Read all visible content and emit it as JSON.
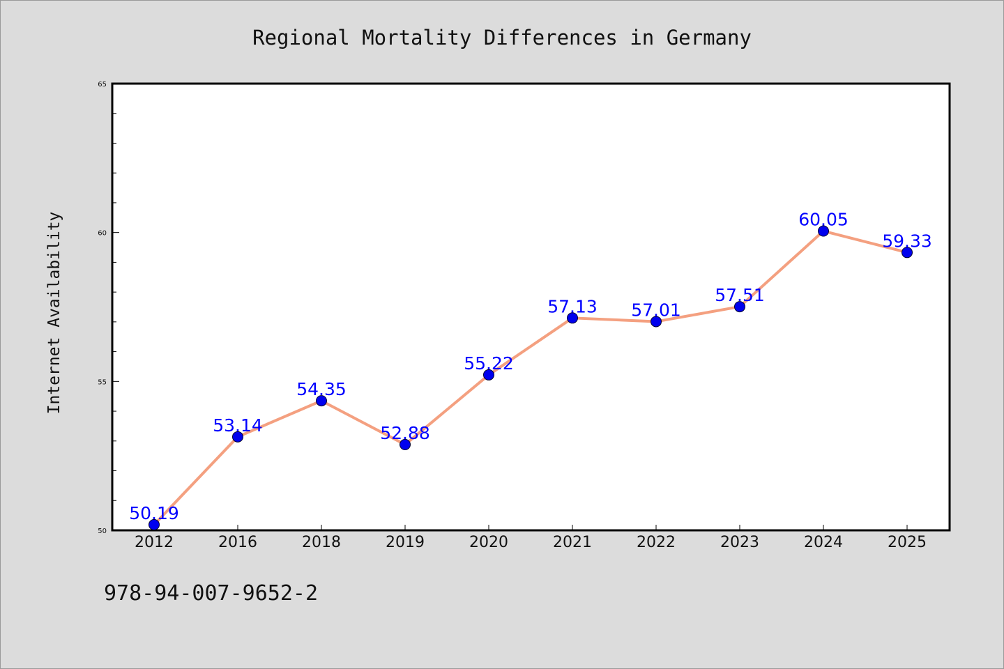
{
  "chart_data": {
    "type": "line",
    "title": "Regional Mortality Differences in Germany",
    "xlabel": "",
    "ylabel": "Internet Availability",
    "categories": [
      "2012",
      "2016",
      "2018",
      "2019",
      "2020",
      "2021",
      "2022",
      "2023",
      "2024",
      "2025"
    ],
    "series": [
      {
        "values": [
          50.19,
          53.14,
          54.35,
          52.88,
          55.22,
          57.13,
          57.01,
          57.51,
          60.05,
          59.33
        ],
        "labels": [
          "50.19",
          "53.14",
          "54.35",
          "52.88",
          "55.22",
          "57.13",
          "57.01",
          "57.51",
          "60.05",
          "59.33"
        ],
        "line_color": "#f4a080",
        "marker_color": "#0000ee"
      }
    ],
    "ylim": [
      50,
      65
    ],
    "yticks": [
      "50",
      "55",
      "60",
      "65"
    ],
    "grid": false,
    "legend": "none"
  },
  "footer": {
    "code": "978-94-007-9652-2"
  },
  "colors": {
    "background": "#dcdcdc",
    "plot_area": "#ffffff",
    "label_color": "#0000ff"
  }
}
